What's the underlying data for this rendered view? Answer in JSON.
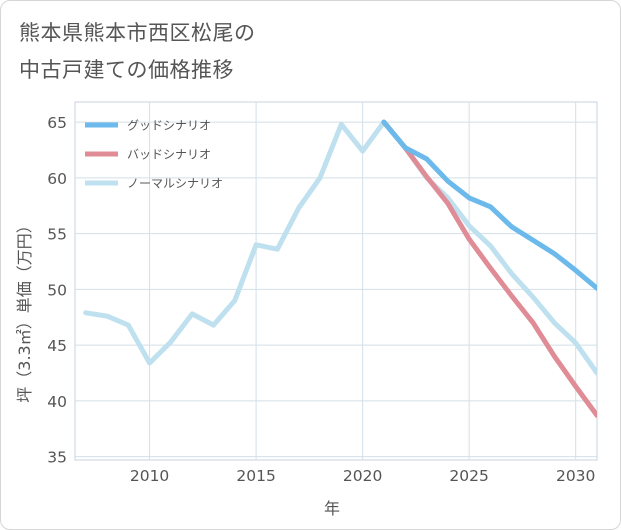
{
  "title_lines": [
    "熊本県熊本市西区松尾の",
    "中古戸建ての価格推移"
  ],
  "chart_data": {
    "type": "line",
    "xlabel": "年",
    "ylabel": "坪（3.3㎡）単価（万円）",
    "xlim": [
      2006.5,
      2031
    ],
    "ylim": [
      34.7,
      66.8
    ],
    "xticks": [
      2010,
      2015,
      2020,
      2025,
      2030
    ],
    "yticks": [
      35,
      40,
      45,
      50,
      55,
      60,
      65
    ],
    "grid": true,
    "legend_position": "top-left",
    "series": [
      {
        "name": "グッドシナリオ",
        "color": "#6cb9ec",
        "x": [
          2021,
          2022,
          2023,
          2024,
          2025,
          2026,
          2027,
          2028,
          2029,
          2030,
          2031
        ],
        "y": [
          65.0,
          62.7,
          61.7,
          59.7,
          58.2,
          57.4,
          55.6,
          54.4,
          53.2,
          51.7,
          50.1
        ]
      },
      {
        "name": "バッドシナリオ",
        "color": "#e08c96",
        "x": [
          2021,
          2022,
          2023,
          2024,
          2025,
          2026,
          2027,
          2028,
          2029,
          2030,
          2031
        ],
        "y": [
          65.0,
          62.7,
          60.1,
          57.7,
          54.5,
          51.9,
          49.4,
          47.0,
          44.0,
          41.3,
          38.7
        ]
      },
      {
        "name": "ノーマルシナリオ",
        "color": "#bfe0ee",
        "x": [
          2007,
          2008,
          2009,
          2010,
          2011,
          2012,
          2013,
          2014,
          2015,
          2016,
          2017,
          2018,
          2019,
          2020,
          2021,
          2022,
          2023,
          2024,
          2025,
          2026,
          2027,
          2028,
          2029,
          2030,
          2031
        ],
        "y": [
          47.9,
          47.6,
          46.8,
          43.4,
          45.3,
          47.8,
          46.8,
          49.0,
          54.0,
          53.6,
          57.3,
          60.0,
          64.8,
          62.4,
          65.0,
          62.7,
          60.0,
          58.2,
          55.7,
          53.9,
          51.4,
          49.3,
          47.0,
          45.2,
          42.5
        ]
      }
    ]
  }
}
